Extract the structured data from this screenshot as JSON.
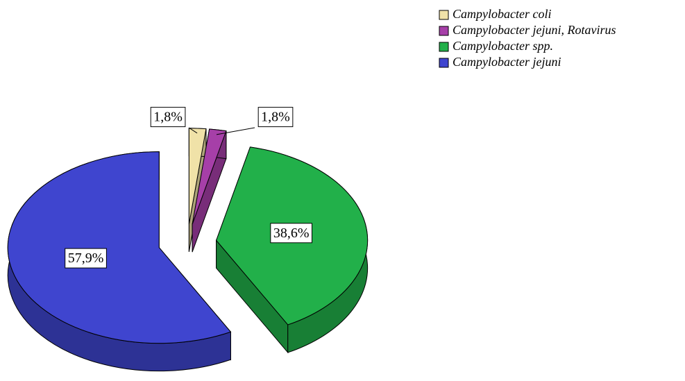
{
  "chart_data": {
    "type": "pie",
    "categories": [
      "Campylobacter coli",
      "Campylobacter jejuni, Rotavirus",
      "Campylobacter spp.",
      "Campylobacter jejuni"
    ],
    "values": [
      1.8,
      1.8,
      38.6,
      57.9
    ],
    "value_labels": [
      "1,8%",
      "1,8%",
      "38,6%",
      "57,9%"
    ],
    "colors": [
      "#f0e2a8",
      "#a63fa8",
      "#22b04a",
      "#3f45cf"
    ],
    "legend": "top-right"
  }
}
